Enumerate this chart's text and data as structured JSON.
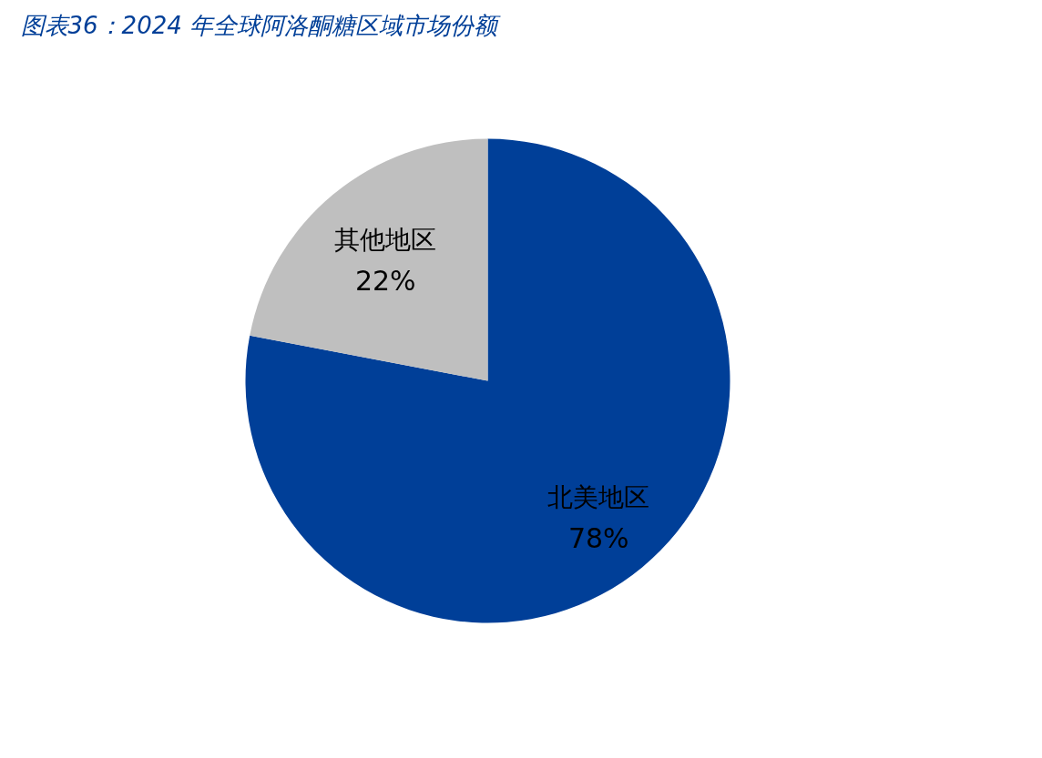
{
  "chart_data": {
    "type": "pie",
    "title": "图表36：2024 年全球阿洛酮糖区域市场份额",
    "categories": [
      "北美地区",
      "其他地区"
    ],
    "values": [
      78,
      22
    ],
    "colors": [
      "#003f98",
      "#bfbfbf"
    ],
    "value_labels": [
      "78%",
      "22%"
    ]
  }
}
